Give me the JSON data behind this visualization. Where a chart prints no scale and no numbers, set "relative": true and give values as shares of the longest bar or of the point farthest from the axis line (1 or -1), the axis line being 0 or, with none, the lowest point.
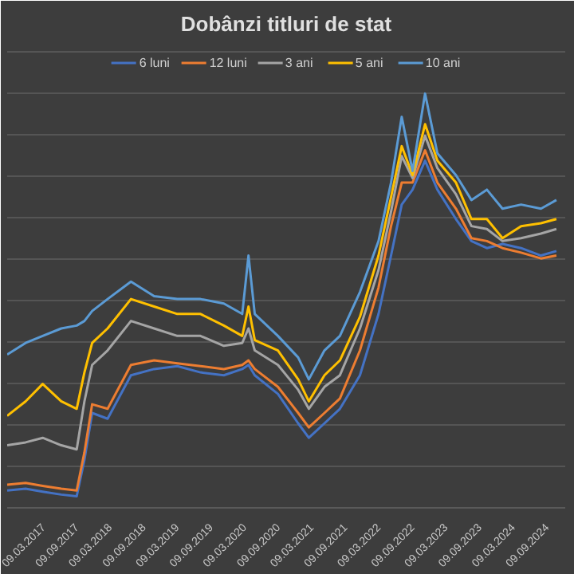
{
  "chart_data": {
    "type": "line",
    "title": "Dobânzi titluri de stat",
    "relative": true,
    "grid": "y",
    "legend": "top",
    "line_style": "solid",
    "marker": "none",
    "xlim": [
      "2016-08-28",
      "2024-12-18"
    ],
    "xticks": [
      {
        "value": "2017-03-09",
        "label": "09.03.2017"
      },
      {
        "value": "2017-09-09",
        "label": "09.09.2017"
      },
      {
        "value": "2018-03-09",
        "label": "09.03.2018"
      },
      {
        "value": "2018-09-09",
        "label": "09.09.2018"
      },
      {
        "value": "2019-03-09",
        "label": "09.03.2019"
      },
      {
        "value": "2019-09-09",
        "label": "09.09.2019"
      },
      {
        "value": "2020-03-09",
        "label": "09.03.2020"
      },
      {
        "value": "2020-09-09",
        "label": "09.09.2020"
      },
      {
        "value": "2021-03-09",
        "label": "09.03.2021"
      },
      {
        "value": "2021-09-09",
        "label": "09.09.2021"
      },
      {
        "value": "2022-03-09",
        "label": "09.03.2022"
      },
      {
        "value": "2022-09-09",
        "label": "09.09.2022"
      },
      {
        "value": "2023-03-09",
        "label": "09.03.2023"
      },
      {
        "value": "2023-09-09",
        "label": "09.09.2023"
      },
      {
        "value": "2024-03-09",
        "label": "09.03.2024"
      },
      {
        "value": "2024-09-09",
        "label": "09.09.2024"
      }
    ],
    "x": [
      "2016-08-28",
      "2016-12-06",
      "2017-03-09",
      "2017-06-18",
      "2017-09-10",
      "2017-10-22",
      "2017-12-03",
      "2018-02-25",
      "2018-07-02",
      "2018-11-05",
      "2019-03-11",
      "2019-07-15",
      "2019-11-19",
      "2020-02-27",
      "2020-04-01",
      "2020-05-05",
      "2020-09-08",
      "2020-12-27",
      "2021-02-23",
      "2021-05-19",
      "2021-08-11",
      "2021-11-28",
      "2022-03-09",
      "2022-05-16",
      "2022-07-13",
      "2022-09-10",
      "2022-11-17",
      "2023-01-23",
      "2023-05-04",
      "2023-07-27",
      "2023-10-19",
      "2024-01-12",
      "2024-04-22",
      "2024-08-08",
      "2024-10-31"
    ],
    "series": [
      {
        "name": "6 luni",
        "color": "#4472c4",
        "values": [
          0.042,
          0.046,
          0.039,
          0.032,
          0.028,
          0.116,
          0.229,
          0.215,
          0.32,
          0.335,
          0.342,
          0.327,
          0.32,
          0.335,
          0.345,
          0.32,
          0.275,
          0.204,
          0.169,
          0.204,
          0.239,
          0.32,
          0.468,
          0.609,
          0.732,
          0.768,
          0.838,
          0.768,
          0.697,
          0.644,
          0.627,
          0.637,
          0.627,
          0.609,
          0.62
        ]
      },
      {
        "name": "12 luni",
        "color": "#ed7d31",
        "values": [
          0.056,
          0.06,
          0.053,
          0.046,
          0.042,
          0.134,
          0.25,
          0.239,
          0.345,
          0.356,
          0.349,
          0.342,
          0.335,
          0.345,
          0.356,
          0.335,
          0.292,
          0.229,
          0.194,
          0.229,
          0.264,
          0.38,
          0.532,
          0.68,
          0.785,
          0.785,
          0.863,
          0.785,
          0.722,
          0.651,
          0.644,
          0.627,
          0.616,
          0.602,
          0.609
        ]
      },
      {
        "name": "3 ani",
        "color": "#a5a5a5",
        "values": [
          0.151,
          0.158,
          0.169,
          0.151,
          0.141,
          0.257,
          0.345,
          0.38,
          0.451,
          0.433,
          0.415,
          0.415,
          0.391,
          0.398,
          0.433,
          0.38,
          0.345,
          0.285,
          0.239,
          0.292,
          0.32,
          0.433,
          0.574,
          0.715,
          0.849,
          0.796,
          0.898,
          0.82,
          0.757,
          0.68,
          0.673,
          0.644,
          0.651,
          0.662,
          0.673
        ]
      },
      {
        "name": "5 ani",
        "color": "#ffc000",
        "values": [
          0.222,
          0.257,
          0.299,
          0.257,
          0.239,
          0.327,
          0.398,
          0.433,
          0.504,
          0.486,
          0.468,
          0.468,
          0.44,
          0.415,
          0.486,
          0.405,
          0.38,
          0.31,
          0.257,
          0.32,
          0.356,
          0.461,
          0.609,
          0.75,
          0.873,
          0.803,
          0.926,
          0.838,
          0.785,
          0.697,
          0.697,
          0.651,
          0.68,
          0.687,
          0.697
        ]
      },
      {
        "name": "10 ani",
        "color": "#5b9bd5",
        "values": [
          0.37,
          0.398,
          0.415,
          0.433,
          0.44,
          0.451,
          0.475,
          0.504,
          0.546,
          0.511,
          0.504,
          0.504,
          0.493,
          0.468,
          0.609,
          0.468,
          0.415,
          0.363,
          0.31,
          0.38,
          0.415,
          0.521,
          0.644,
          0.785,
          0.944,
          0.813,
          1.0,
          0.856,
          0.803,
          0.743,
          0.768,
          0.722,
          0.732,
          0.722,
          0.743
        ]
      }
    ]
  }
}
